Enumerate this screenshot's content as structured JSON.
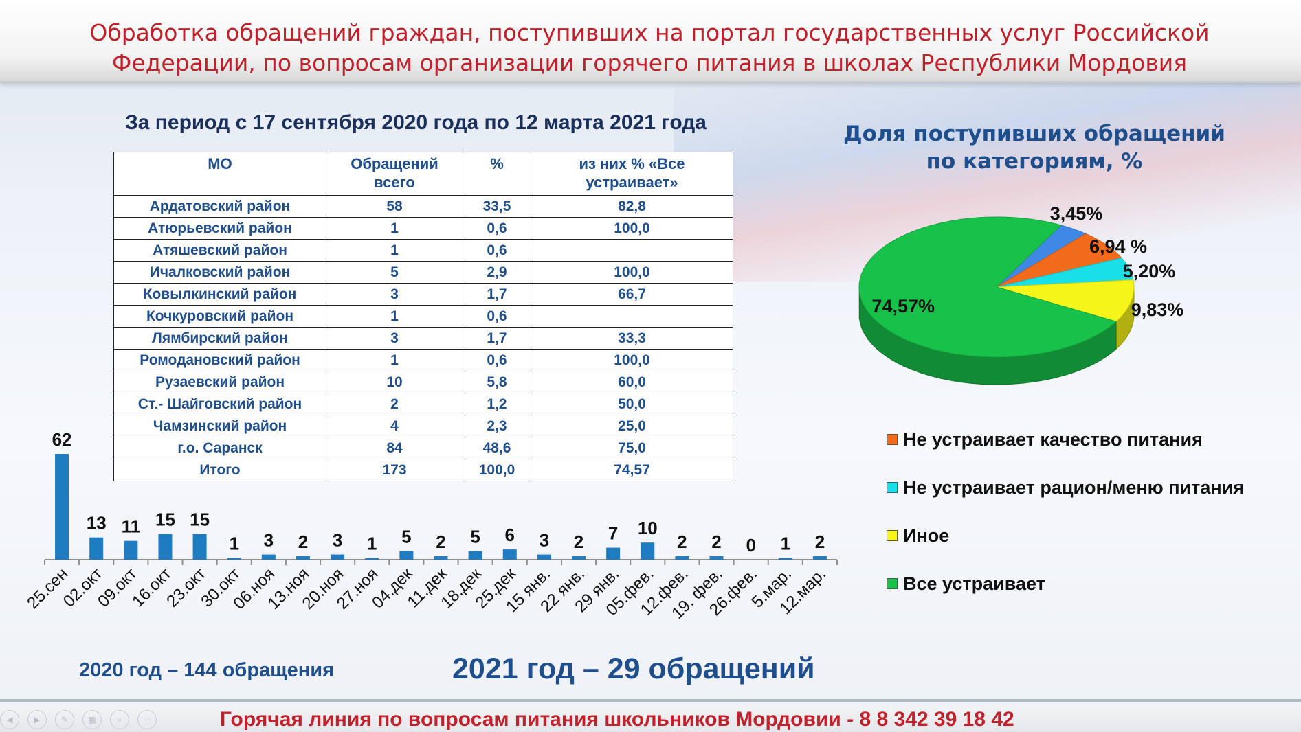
{
  "title": {
    "line1": "Обработка обращений граждан, поступивших на портал государственных услуг Российской",
    "line2": "Федерации,  по вопросам организации горячего питания в школах Республики Мордовия"
  },
  "period": "За период с 17 сентября 2020 года по 12 марта 2021 года",
  "table": {
    "headers": [
      "МО",
      "Обращений всего",
      "%",
      "из них % «Все устраивает»"
    ],
    "rows": [
      [
        "Ардатовский район",
        "58",
        "33,5",
        "82,8"
      ],
      [
        "Атюрьевский район",
        "1",
        "0,6",
        "100,0"
      ],
      [
        "Атяшевский район",
        "1",
        "0,6",
        ""
      ],
      [
        "Ичалковский район",
        "5",
        "2,9",
        "100,0"
      ],
      [
        "Ковылкинский район",
        "3",
        "1,7",
        "66,7"
      ],
      [
        "Кочкуровский район",
        "1",
        "0,6",
        ""
      ],
      [
        "Лямбирский район",
        "3",
        "1,7",
        "33,3"
      ],
      [
        "Ромодановский район",
        "1",
        "0,6",
        "100,0"
      ],
      [
        "Рузаевский район",
        "10",
        "5,8",
        "60,0"
      ],
      [
        "Ст.- Шайговский район",
        "2",
        "1,2",
        "50,0"
      ],
      [
        "Чамзинский район",
        "4",
        "2,3",
        "25,0"
      ],
      [
        "г.о. Саранск",
        "84",
        "48,6",
        "75,0"
      ],
      [
        "Итого",
        "173",
        "100,0",
        "74,57"
      ]
    ]
  },
  "pie_title": {
    "line1": "Доля поступивших обращений",
    "line2": "по категориям, %"
  },
  "summary": {
    "y2020": "2020 год – 144 обращения",
    "y2021": "2021 год – 29 обращений"
  },
  "hotline": "Горячая линия по вопросам питания школьников Мордовии  - 8 8 342 39 18 42",
  "nav_icons": [
    "prev-icon",
    "next-icon",
    "pen-icon",
    "slides-icon",
    "zoom-icon",
    "more-icon"
  ],
  "chart_data": [
    {
      "type": "bar",
      "categories": [
        "25.сен",
        "02.окт",
        "09.окт",
        "16.окт",
        "23.окт",
        "30.окт",
        "06.ноя",
        "13.ноя",
        "20.ноя",
        "27.ноя",
        "04.дек",
        "11.дек",
        "18.дек",
        "25.дек",
        "15 янв.",
        "22 янв.",
        "29 янв.",
        "05.фев.",
        "12.фев.",
        "19. фев.",
        "26.фев.",
        "5.мар.",
        "12.мар."
      ],
      "values": [
        62,
        13,
        11,
        15,
        15,
        1,
        3,
        2,
        3,
        1,
        5,
        2,
        5,
        6,
        3,
        2,
        7,
        10,
        2,
        2,
        0,
        1,
        2
      ],
      "color": "#1f7cc1",
      "data_labels": true,
      "grid": false
    },
    {
      "type": "pie",
      "slices": [
        {
          "label": "Все устраивает",
          "value": 74.57,
          "text": "74,57%",
          "color": "#18c24a"
        },
        {
          "label": "",
          "value": 3.45,
          "text": "3,45%",
          "color": "#3f88e6"
        },
        {
          "label": "Не устраивает качество питания",
          "value": 6.94,
          "text": "6,94 %",
          "color": "#f26a1b"
        },
        {
          "label": "Не устраивает рацион/меню питания",
          "value": 5.2,
          "text": "5,20%",
          "color": "#19e0e8"
        },
        {
          "label": "Иное",
          "value": 9.83,
          "text": "9,83%",
          "color": "#f5f51a"
        }
      ],
      "legend": [
        "Не устраивает качество питания",
        "Не устраивает рацион/меню питания",
        "Иное",
        "Все устраивает"
      ],
      "legend_colors": [
        "#f26a1b",
        "#19e0e8",
        "#f5f51a",
        "#18c24a"
      ],
      "legend_position": "bottom-right"
    }
  ]
}
